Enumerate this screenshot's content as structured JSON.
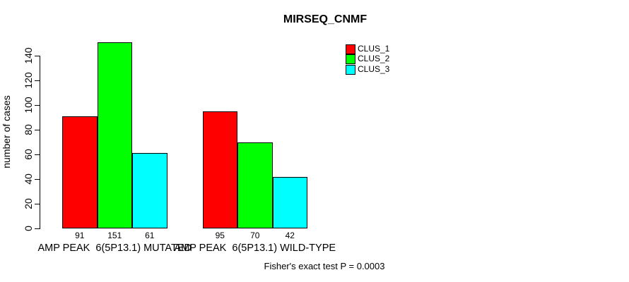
{
  "chart_data": {
    "type": "bar",
    "title": "MIRSEQ_CNMF",
    "ylabel": "number of cases",
    "xlabel": "",
    "yticks": [
      0,
      20,
      40,
      60,
      80,
      100,
      120,
      140
    ],
    "ylim": [
      0,
      160
    ],
    "grid": false,
    "legend_position": "top-right",
    "bar_border_color": "#000000",
    "background_color": "#ffffff",
    "categories": [
      "AMP PEAK  6(5P13.1) MUTATED",
      "AMP PEAK  6(5P13.1) WILD-TYPE"
    ],
    "series": [
      {
        "name": "CLUS_1",
        "color": "#ff0000",
        "values": [
          91,
          95
        ]
      },
      {
        "name": "CLUS_2",
        "color": "#00ff00",
        "values": [
          151,
          70
        ]
      },
      {
        "name": "CLUS_3",
        "color": "#00ffff",
        "values": [
          61,
          42
        ]
      }
    ],
    "bar_value_labels": [
      [
        91,
        151,
        61
      ],
      [
        95,
        70,
        42
      ]
    ],
    "footnote": "Fisher's exact test P = 0.0003"
  }
}
